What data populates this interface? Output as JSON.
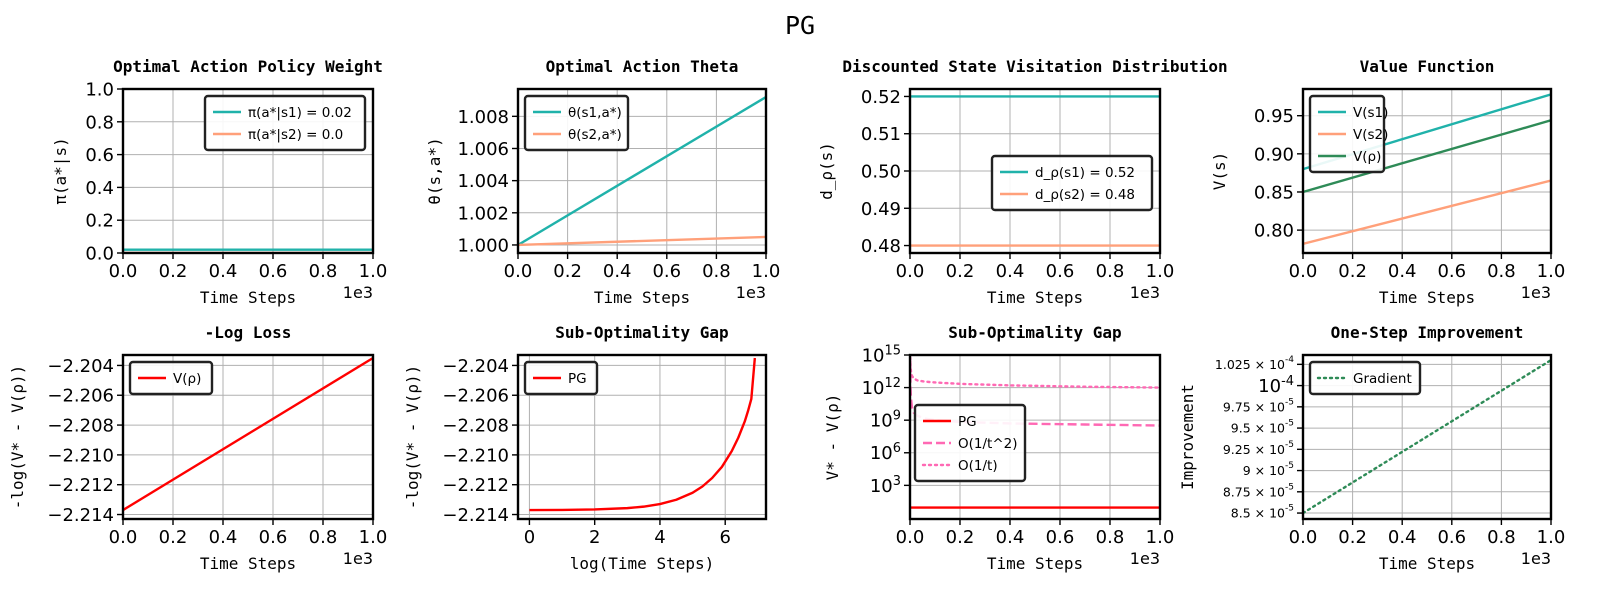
{
  "figure": {
    "title": "PG"
  },
  "chart_data": [
    {
      "type": "line",
      "title": "Optimal Action Policy Weight",
      "xlabel": "Time Steps",
      "ylabel": "π(a*|s)",
      "xlim": [
        0,
        1000
      ],
      "ylim": [
        0,
        1
      ],
      "xticks": [
        0,
        200,
        400,
        600,
        800,
        1000
      ],
      "xtick_labels": [
        "0.0",
        "0.2",
        "0.4",
        "0.6",
        "0.8",
        "1.0"
      ],
      "x_offset_label": "1e3",
      "yticks": [
        0,
        0.2,
        0.4,
        0.6,
        0.8,
        1.0
      ],
      "ytick_labels": [
        "0.0",
        "0.2",
        "0.4",
        "0.6",
        "0.8",
        "1.0"
      ],
      "grid": true,
      "legend": "top-right",
      "series": [
        {
          "name": "π(a*|s1) = 0.02",
          "color": "#20b2aa",
          "style": "solid",
          "x": [
            0,
            1000
          ],
          "y": [
            0.02,
            0.02
          ]
        },
        {
          "name": "π(a*|s2) = 0.0",
          "color": "#ffa07a",
          "style": "solid",
          "x": [
            0,
            1000
          ],
          "y": [
            0.0,
            0.0
          ]
        }
      ]
    },
    {
      "type": "line",
      "title": "Optimal Action Theta",
      "xlabel": "Time Steps",
      "ylabel": "θ(s,a*)",
      "xlim": [
        0,
        1000
      ],
      "ylim": [
        0.9995,
        1.0097
      ],
      "xticks": [
        0,
        200,
        400,
        600,
        800,
        1000
      ],
      "xtick_labels": [
        "0.0",
        "0.2",
        "0.4",
        "0.6",
        "0.8",
        "1.0"
      ],
      "x_offset_label": "1e3",
      "yticks": [
        1.0,
        1.002,
        1.004,
        1.006,
        1.008
      ],
      "ytick_labels": [
        "1.000",
        "1.002",
        "1.004",
        "1.006",
        "1.008"
      ],
      "grid": true,
      "legend": "top-left",
      "series": [
        {
          "name": "θ(s1,a*)",
          "color": "#20b2aa",
          "style": "solid",
          "x": [
            0,
            1000
          ],
          "y": [
            1.0,
            1.0092
          ]
        },
        {
          "name": "θ(s2,a*)",
          "color": "#ffa07a",
          "style": "solid",
          "x": [
            0,
            1000
          ],
          "y": [
            1.0,
            1.0005
          ]
        }
      ]
    },
    {
      "type": "line",
      "title": "Discounted State Visitation Distribution",
      "xlabel": "Time Steps",
      "ylabel": "d_ρ(s)",
      "xlim": [
        0,
        1000
      ],
      "ylim": [
        0.478,
        0.522
      ],
      "xticks": [
        0,
        200,
        400,
        600,
        800,
        1000
      ],
      "xtick_labels": [
        "0.0",
        "0.2",
        "0.4",
        "0.6",
        "0.8",
        "1.0"
      ],
      "x_offset_label": "1e3",
      "yticks": [
        0.48,
        0.49,
        0.5,
        0.51,
        0.52
      ],
      "ytick_labels": [
        "0.48",
        "0.49",
        "0.50",
        "0.51",
        "0.52"
      ],
      "grid": true,
      "legend": "center-right",
      "series": [
        {
          "name": "d_ρ(s1) = 0.52",
          "color": "#20b2aa",
          "style": "solid",
          "x": [
            0,
            1000
          ],
          "y": [
            0.52,
            0.52
          ]
        },
        {
          "name": "d_ρ(s2) = 0.48",
          "color": "#ffa07a",
          "style": "solid",
          "x": [
            0,
            1000
          ],
          "y": [
            0.48,
            0.48
          ]
        }
      ]
    },
    {
      "type": "line",
      "title": "Value Function",
      "xlabel": "Time Steps",
      "ylabel": "V(s)",
      "xlim": [
        0,
        1000
      ],
      "ylim": [
        0.77,
        0.985
      ],
      "xticks": [
        0,
        200,
        400,
        600,
        800,
        1000
      ],
      "xtick_labels": [
        "0.0",
        "0.2",
        "0.4",
        "0.6",
        "0.8",
        "1.0"
      ],
      "x_offset_label": "1e3",
      "yticks": [
        0.8,
        0.85,
        0.9,
        0.95
      ],
      "ytick_labels": [
        "0.80",
        "0.85",
        "0.90",
        "0.95"
      ],
      "grid": true,
      "legend": "top-left",
      "series": [
        {
          "name": "V(s1)",
          "color": "#20b2aa",
          "style": "solid",
          "x": [
            0,
            1000
          ],
          "y": [
            0.88,
            0.978
          ]
        },
        {
          "name": "V(s2)",
          "color": "#ffa07a",
          "style": "solid",
          "x": [
            0,
            1000
          ],
          "y": [
            0.782,
            0.865
          ]
        },
        {
          "name": "V(ρ)",
          "color": "#2e8b57",
          "style": "solid",
          "x": [
            0,
            1000
          ],
          "y": [
            0.85,
            0.944
          ]
        }
      ]
    },
    {
      "type": "line",
      "title": "-Log Loss",
      "xlabel": "Time Steps",
      "ylabel": "-log(V* - V(ρ))",
      "xlim": [
        0,
        1000
      ],
      "ylim": [
        -2.2143,
        -2.2033
      ],
      "xticks": [
        0,
        200,
        400,
        600,
        800,
        1000
      ],
      "xtick_labels": [
        "0.0",
        "0.2",
        "0.4",
        "0.6",
        "0.8",
        "1.0"
      ],
      "x_offset_label": "1e3",
      "yticks": [
        -2.214,
        -2.212,
        -2.21,
        -2.208,
        -2.206,
        -2.204
      ],
      "ytick_labels": [
        "−2.214",
        "−2.212",
        "−2.210",
        "−2.208",
        "−2.206",
        "−2.204"
      ],
      "grid": true,
      "legend": "top-left",
      "series": [
        {
          "name": "V(ρ)",
          "color": "#ff0000",
          "style": "solid",
          "x": [
            0,
            1000
          ],
          "y": [
            -2.2137,
            -2.2035
          ]
        }
      ]
    },
    {
      "type": "line",
      "title": "Sub-Optimality Gap",
      "xlabel": "log(Time Steps)",
      "ylabel": "-log(V* - V(ρ))",
      "xlim": [
        -0.35,
        7.25
      ],
      "ylim": [
        -2.2143,
        -2.2033
      ],
      "xticks": [
        0,
        2,
        4,
        6
      ],
      "xtick_labels": [
        "0",
        "2",
        "4",
        "6"
      ],
      "yticks": [
        -2.214,
        -2.212,
        -2.21,
        -2.208,
        -2.206,
        -2.204
      ],
      "ytick_labels": [
        "−2.214",
        "−2.212",
        "−2.210",
        "−2.208",
        "−2.206",
        "−2.204"
      ],
      "grid": true,
      "legend": "top-left",
      "series": [
        {
          "name": "PG",
          "color": "#ff0000",
          "style": "solid",
          "x": [
            0,
            1,
            2,
            3,
            3.5,
            4,
            4.5,
            5,
            5.3,
            5.6,
            5.9,
            6.2,
            6.4,
            6.6,
            6.7,
            6.8,
            6.908
          ],
          "y": [
            -2.2137,
            -2.21369,
            -2.21366,
            -2.21357,
            -2.21347,
            -2.2133,
            -2.21301,
            -2.21254,
            -2.21212,
            -2.21155,
            -2.2108,
            -2.20975,
            -2.20885,
            -2.20775,
            -2.20705,
            -2.20625,
            -2.2035
          ]
        }
      ]
    },
    {
      "type": "line",
      "title": "Sub-Optimality Gap",
      "xlabel": "Time Steps",
      "ylabel": "V* - V(ρ)",
      "yscale": "log",
      "xlim": [
        0,
        1000
      ],
      "ylim": [
        0.8,
        1000000000000000.0
      ],
      "xticks": [
        0,
        200,
        400,
        600,
        800,
        1000
      ],
      "xtick_labels": [
        "0.0",
        "0.2",
        "0.4",
        "0.6",
        "0.8",
        "1.0"
      ],
      "x_offset_label": "1e3",
      "yticks": [
        1000,
        1000000,
        1000000000,
        1000000000000,
        1000000000000000
      ],
      "ytick_labels": [
        "10^3",
        "10^6",
        "10^9",
        "10^12",
        "10^15"
      ],
      "grid": true,
      "legend": "center-left",
      "series": [
        {
          "name": "PG",
          "color": "#ff0000",
          "style": "solid",
          "x": [
            0,
            1000
          ],
          "y": [
            9.1,
            9.1
          ]
        },
        {
          "name": "O(1/t^2)",
          "color": "#ff69b4",
          "style": "dashed",
          "x": [
            1,
            2,
            4,
            8,
            15,
            30,
            60,
            100,
            200,
            400,
            700,
            1000
          ],
          "y": [
            300000000000000.0,
            1000000000000.0,
            100000000000.0,
            15000000000.0,
            5000000000.0,
            2500000000.0,
            1400000000.0,
            1000000000.0,
            700000000.0,
            500000000.0,
            400000000.0,
            320000000.0
          ]
        },
        {
          "name": "O(1/t)",
          "color": "#ff69b4",
          "style": "dotted",
          "x": [
            1,
            2,
            4,
            8,
            15,
            30,
            60,
            100,
            200,
            400,
            700,
            1000
          ],
          "y": [
            600000000000000.0,
            100000000000000.0,
            30000000000000.0,
            12000000000000.0,
            7000000000000.0,
            4500000000000.0,
            3500000000000.0,
            3000000000000.0,
            2200000000000.0,
            1600000000000.0,
            1200000000000.0,
            1000000000000.0
          ]
        }
      ]
    },
    {
      "type": "line",
      "title": "One-Step Improvement",
      "xlabel": "Time Steps",
      "ylabel": "Improvement",
      "xlim": [
        0,
        1000
      ],
      "ylim": [
        8.43e-05,
        0.0001036
      ],
      "xticks": [
        0,
        200,
        400,
        600,
        800,
        1000
      ],
      "xtick_labels": [
        "0.0",
        "0.2",
        "0.4",
        "0.6",
        "0.8",
        "1.0"
      ],
      "x_offset_label": "1e3",
      "yticks": [
        8.5e-05,
        8.75e-05,
        9e-05,
        9.25e-05,
        9.5e-05,
        9.75e-05,
        0.0001,
        0.0001025
      ],
      "ytick_labels": [
        "8.5 × 10^-5",
        "8.75 × 10^-5",
        "9 × 10^-5",
        "9.25 × 10^-5",
        "9.5 × 10^-5",
        "9.75 × 10^-5",
        "10^-4",
        "1.025 × 10^-4"
      ],
      "grid": true,
      "legend": "top-left",
      "series": [
        {
          "name": "Gradient",
          "color": "#2e8b57",
          "style": "dotted",
          "x": [
            0,
            1000
          ],
          "y": [
            8.5e-05,
            0.000103
          ]
        }
      ]
    }
  ]
}
